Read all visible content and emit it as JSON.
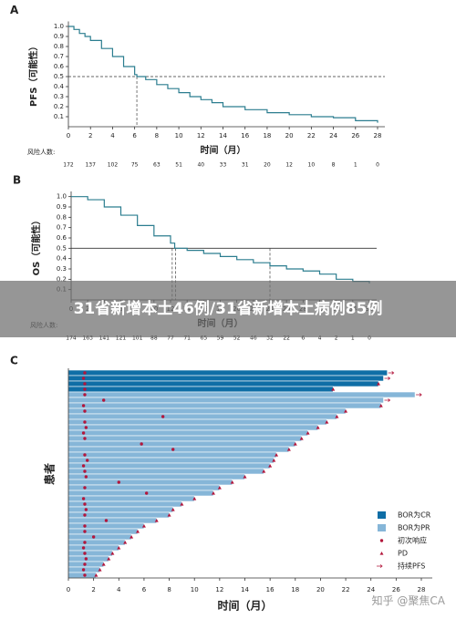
{
  "chart_data": [
    {
      "type": "line",
      "step": true,
      "panel": "A",
      "ylabel": "PFS（可能性）",
      "xlabel": "时间（月）",
      "color": "#2b7d8f",
      "x": [
        0,
        0.5,
        1,
        1.5,
        2,
        3,
        4,
        5,
        6,
        6.2,
        7,
        8,
        9,
        10,
        11,
        12,
        13,
        14,
        16,
        18,
        20,
        22,
        24,
        26,
        28
      ],
      "y": [
        1,
        0.97,
        0.93,
        0.9,
        0.86,
        0.78,
        0.7,
        0.6,
        0.52,
        0.5,
        0.47,
        0.42,
        0.38,
        0.34,
        0.3,
        0.27,
        0.24,
        0.2,
        0.17,
        0.14,
        0.12,
        0.1,
        0.09,
        0.06,
        0.04
      ],
      "xlim": [
        0,
        28
      ],
      "xticks": [
        0,
        2,
        4,
        6,
        8,
        10,
        12,
        14,
        16,
        18,
        20,
        22,
        24,
        26,
        28
      ],
      "ylim": [
        0,
        1.05
      ],
      "yticks": [
        0.1,
        0.2,
        0.3,
        0.4,
        0.5,
        0.6,
        0.7,
        0.8,
        0.9,
        {
          "value": 1,
          "label": "1.0"
        }
      ],
      "hlines": [
        0.5
      ],
      "hline_style": "dashed",
      "vlines": [
        6.2
      ],
      "vline_style": "dashed",
      "risk_label": "风险人数:",
      "risk_counts": [
        172,
        137,
        102,
        75,
        63,
        51,
        40,
        33,
        31,
        20,
        12,
        10,
        8,
        1,
        0
      ]
    },
    {
      "type": "line",
      "step": true,
      "panel": "B",
      "ylabel": "OS（可能性）",
      "xlabel": "时间（月）",
      "color": "#2b7d8f",
      "x": [
        0,
        2,
        4,
        6,
        8,
        10,
        12,
        12.5,
        14,
        16,
        18,
        20,
        22,
        24,
        26,
        28,
        30,
        32,
        34,
        36
      ],
      "y": [
        1,
        0.97,
        0.9,
        0.82,
        0.72,
        0.62,
        0.55,
        0.5,
        0.48,
        0.45,
        0.42,
        0.39,
        0.36,
        0.33,
        0.3,
        0.28,
        0.25,
        0.2,
        0.18,
        0.16
      ],
      "xlim": [
        0,
        36
      ],
      "xticks": [
        0,
        2,
        4,
        6,
        8,
        10,
        12,
        14,
        16,
        18,
        20,
        22,
        24,
        26,
        28,
        30,
        32,
        34,
        36
      ],
      "ylim": [
        0,
        1.05
      ],
      "yticks": [
        0.1,
        0.2,
        0.3,
        0.4,
        0.5,
        0.6,
        0.7,
        0.8,
        0.9,
        {
          "value": 1,
          "label": "1.0"
        }
      ],
      "hlines": [
        0.5
      ],
      "hline_style": "solid",
      "vlines": [
        12.2,
        12.6,
        24
      ],
      "vline_style": "dashed",
      "risk_label": "风险人数:",
      "risk_counts": [
        174,
        163,
        141,
        121,
        101,
        88,
        77,
        71,
        65,
        59,
        52,
        46,
        32,
        22,
        6,
        4,
        2,
        1,
        0
      ]
    },
    {
      "type": "bar",
      "orientation": "horizontal",
      "panel": "C",
      "ylabel": "患者",
      "xlabel": "时间（月）",
      "xlim": [
        0,
        28
      ],
      "xticks": [
        0,
        2,
        4,
        6,
        8,
        10,
        12,
        14,
        16,
        18,
        20,
        22,
        24,
        26,
        28
      ],
      "series": [
        {
          "name": "BOR为CR",
          "color": "#0f6ea6",
          "values": [
            25.3,
            25,
            24.6,
            21,
            null,
            null,
            null,
            null,
            null,
            null,
            null,
            null,
            null,
            null,
            null,
            null,
            null,
            null,
            null,
            null,
            null,
            null,
            null,
            null,
            null,
            null,
            null,
            null,
            null,
            null,
            null,
            null,
            null,
            null,
            null,
            null,
            null,
            null
          ]
        },
        {
          "name": "BOR为PR",
          "color": "#86b6d8",
          "values": [
            null,
            null,
            null,
            null,
            27.5,
            25,
            24.8,
            22,
            21.3,
            20.5,
            19.8,
            19,
            18.5,
            18,
            17.5,
            16.5,
            16.3,
            16,
            15.5,
            14,
            13,
            12,
            11.5,
            10,
            9,
            8.3,
            8,
            7,
            6,
            5.5,
            5,
            4.5,
            4,
            3.5,
            3.2,
            2.8,
            2.5,
            2.2
          ]
        }
      ],
      "markers": [
        {
          "name": "初次响应",
          "shape": "circle",
          "color": "#b3173c",
          "values": [
            1.3,
            1.2,
            1.3,
            1.3,
            1.3,
            2.8,
            1.2,
            1.3,
            7.5,
            1.3,
            1.4,
            1.2,
            1.3,
            5.8,
            8.3,
            1.3,
            1.5,
            1.2,
            1.3,
            1.4,
            4,
            1.3,
            6.2,
            1.2,
            1.3,
            1.4,
            1.3,
            3,
            1.3,
            1.3,
            2,
            1.3,
            1.2,
            1.3,
            1.4,
            1.3,
            1.2,
            1.3
          ]
        },
        {
          "name": "PD",
          "shape": "triangle",
          "color": "#b3173c",
          "values": [
            null,
            null,
            24.6,
            21,
            null,
            null,
            24.8,
            22,
            21.3,
            20.5,
            19.8,
            19,
            18.5,
            18,
            17.5,
            16.5,
            16.3,
            16,
            15.5,
            14,
            13,
            12,
            11.5,
            10,
            9,
            8.3,
            8,
            7,
            6,
            5.5,
            5,
            4.5,
            4,
            3.5,
            3.2,
            2.8,
            2.5,
            2.2
          ]
        },
        {
          "name": "持续PFS",
          "shape": "arrow",
          "color": "#b3173c",
          "values": [
            25.3,
            25,
            null,
            null,
            27.5,
            25,
            null,
            null,
            null,
            null,
            null,
            null,
            null,
            null,
            null,
            null,
            null,
            null,
            null,
            null,
            null,
            null,
            null,
            null,
            null,
            null,
            null,
            null,
            null,
            null,
            null,
            null,
            null,
            null,
            null,
            null,
            null,
            null
          ]
        }
      ]
    }
  ],
  "overlay_text": "31省新增本土46例/31省新增本土病例85例",
  "watermark": "知乎 @聚焦CA"
}
